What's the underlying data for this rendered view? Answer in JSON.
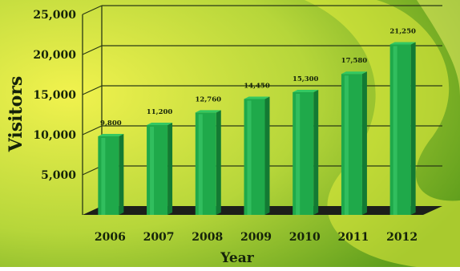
{
  "chart_data": {
    "type": "bar",
    "title": "",
    "xlabel": "Year",
    "ylabel": "Visitors",
    "categories": [
      "2006",
      "2007",
      "2008",
      "2009",
      "2010",
      "2011",
      "2012"
    ],
    "values": [
      9800,
      11200,
      12760,
      14450,
      15300,
      17580,
      21250
    ],
    "value_labels": [
      "9,800",
      "11,200",
      "12,760",
      "14,450",
      "15,300",
      "17,580",
      "21,250"
    ],
    "ylim": [
      0,
      25000
    ],
    "yticks": [
      5000,
      10000,
      15000,
      20000,
      25000
    ],
    "ytick_labels": [
      "5,000",
      "10,000",
      "15,000",
      "20,000",
      "25,000"
    ],
    "grid": true,
    "legend": "none",
    "colors": {
      "bar_front": "#1fa94a",
      "bar_side": "#137a33",
      "bar_top": "#33c862",
      "floor": "#1c1f1a",
      "background_light": "#eef04a",
      "background_dark": "#6aa71f"
    }
  }
}
